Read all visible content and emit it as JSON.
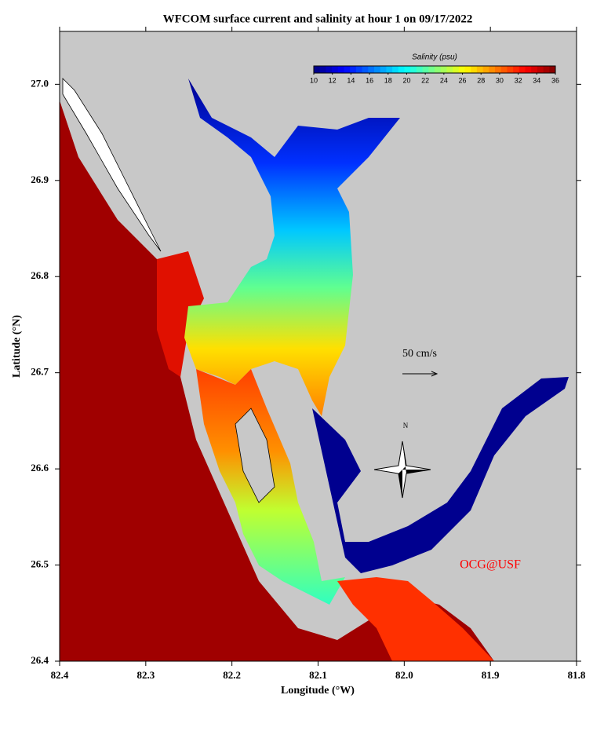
{
  "chart_data": {
    "type": "map",
    "title": "WFCOM surface current and salinity at hour 1 on 09/17/2022",
    "xlabel": "Longitude (°W)",
    "ylabel": "Latitude (°N)",
    "xlim": [
      82.4,
      81.8
    ],
    "xticks": [
      82.4,
      82.3,
      82.2,
      82.1,
      {
        "value": 82,
        "label": "82.0"
      },
      81.9,
      81.8
    ],
    "ylim": [
      26.4,
      27.055
    ],
    "yticks": [
      26.4,
      26.5,
      26.6,
      26.7,
      26.8,
      26.9,
      {
        "value": 27,
        "label": "27.0"
      }
    ],
    "colorbar": {
      "label": "Salinity (psu)",
      "colormap": "jet",
      "lim": [
        10,
        36
      ],
      "ticks": [
        10,
        12,
        14,
        16,
        18,
        20,
        22,
        24,
        26,
        28,
        30,
        32,
        34,
        36
      ]
    },
    "scale_label": "50 cm/s",
    "compass_label": "N",
    "credit": "OCG@USF",
    "credit_color": "#ff0000",
    "land_color": "#c8c8c8"
  }
}
